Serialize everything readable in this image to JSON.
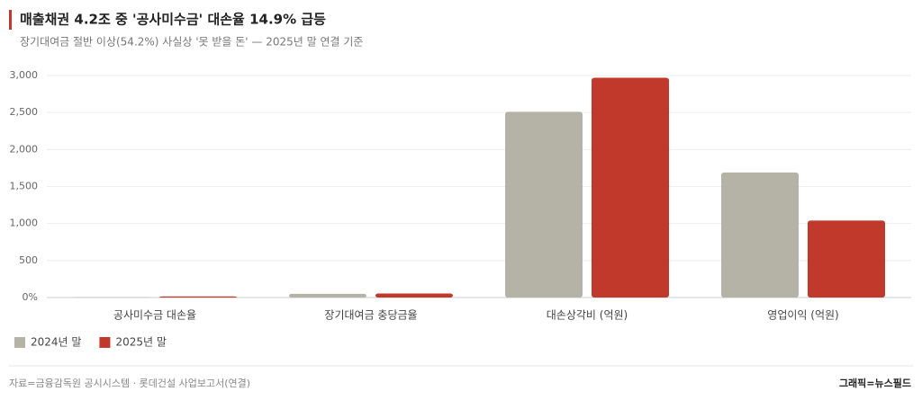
{
  "chart_data": {
    "type": "bar",
    "title": "매출채권 4.2조 중 '공사미수금' 대손율 14.9% 급등",
    "subtitle": "장기대여금 절반 이상(54.2%) 사실상 '못 받을 돈' — 2025년 말 연결 기준",
    "categories": [
      "공사미수금 대손율",
      "장기대여금 충당금율",
      "대손상각비 (억원)",
      "영업이익 (억원)"
    ],
    "series": [
      {
        "name": "2024년 말",
        "color": "#b5b2a6",
        "values": [
          5,
          50,
          2510,
          1690
        ]
      },
      {
        "name": "2025년 말",
        "color": "#c0392b",
        "values": [
          14.9,
          54.2,
          2970,
          1040
        ]
      }
    ],
    "ylim": [
      0,
      3000
    ],
    "yticks": [
      {
        "value": 0,
        "label": "0%"
      },
      500,
      {
        "value": 1000,
        "label": "1,000"
      },
      {
        "value": 1500,
        "label": "1,500"
      },
      {
        "value": 2000,
        "label": "2,000"
      },
      {
        "value": 2500,
        "label": "2,500"
      },
      {
        "value": 3000,
        "label": "3,000"
      }
    ],
    "grid": true,
    "legend": "bottom-left",
    "source": "자료=금융감독원 공시시스템 · 롯데건설 사업보고서(연결)",
    "credit": "그래픽=뉴스필드"
  }
}
